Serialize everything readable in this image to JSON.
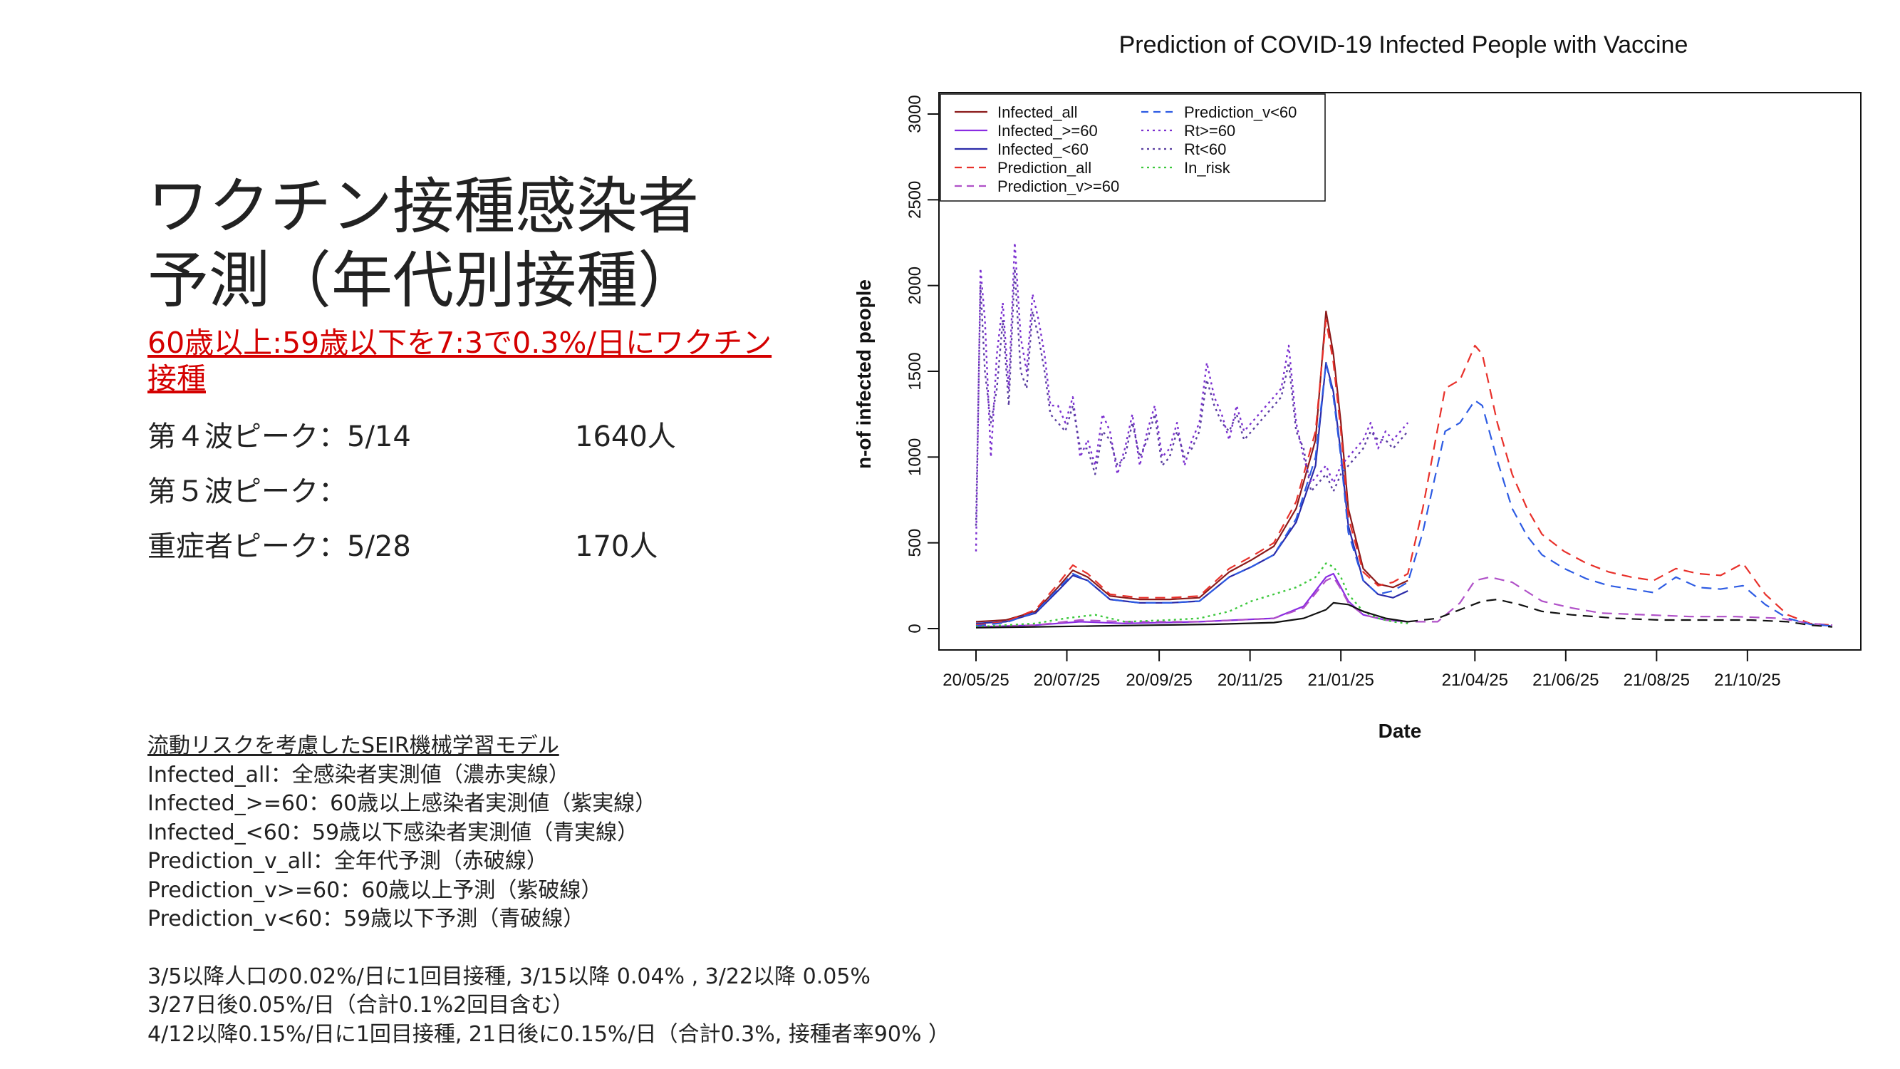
{
  "slide": {
    "title_line1": "ワクチン接種感染者",
    "title_line2": "予測（年代別接種）",
    "scenario": "60歳以上:59歳以下を7:3で0.3%/日にワクチン接種",
    "peaks": [
      {
        "label": "第４波ピーク：5/14",
        "value": "1640人"
      },
      {
        "label": "第５波ピーク：",
        "value": ""
      },
      {
        "label": "重症者ピーク：5/28",
        "value": "170人"
      }
    ],
    "notes_heading": "流動リスクを考慮したSEIR機械学習モデル",
    "legend_notes": [
      "Infected_all：全感染者実測値（濃赤実線）",
      "Infected_>=60：60歳以上感染者実測値（紫実線）",
      "Infected_<60：59歳以下感染者実測値（青実線）",
      "Prediction_v_all：全年代予測（赤破線）",
      "Prediction_v>=60：60歳以上予測（紫破線）",
      "Prediction_v<60：59歳以下予測（青破線）"
    ],
    "vaccine_notes": [
      "3/5以降人口の0.02%/日に1回目接種, 3/15以降 0.04% , 3/22以降 0.05%",
      "3/27日後0.05%/日（合計0.1%2回目含む）",
      "4/12以降0.15%/日に1回目接種, 21日後に0.15%/日（合計0.3%, 接種者率90% ）"
    ]
  },
  "chart_data": {
    "type": "line",
    "title": "Prediction of COVID-19 Infected People with Vaccine",
    "xlabel": "Date",
    "ylabel": "n-of infected people",
    "ylim": [
      0,
      3000
    ],
    "yticks": [
      0,
      500,
      1000,
      1500,
      2000,
      2500,
      3000
    ],
    "xticks": [
      "20/05/25",
      "20/07/25",
      "20/09/25",
      "20/11/25",
      "21/01/25",
      "21/04/25",
      "21/06/25",
      "21/08/25",
      "21/10/25"
    ],
    "xticks_day": [
      0,
      61,
      123,
      184,
      245,
      335,
      396,
      457,
      518
    ],
    "legend_position": "top-left",
    "series": [
      {
        "name": "Infected_all",
        "color": "#8b1a1a",
        "dash": "solid",
        "x": [
          0,
          20,
          40,
          55,
          65,
          75,
          90,
          110,
          130,
          150,
          170,
          185,
          200,
          215,
          228,
          235,
          240,
          245,
          250,
          260,
          270,
          280,
          290
        ],
        "y": [
          40,
          50,
          100,
          240,
          340,
          300,
          190,
          170,
          170,
          180,
          330,
          400,
          480,
          700,
          1100,
          1850,
          1600,
          1200,
          700,
          350,
          260,
          240,
          280
        ]
      },
      {
        "name": "Infected_>=60",
        "color": "#8a2be2",
        "dash": "solid",
        "x": [
          0,
          40,
          70,
          100,
          150,
          200,
          220,
          235,
          240,
          245,
          250,
          260,
          275,
          290
        ],
        "y": [
          10,
          20,
          40,
          30,
          40,
          60,
          130,
          300,
          320,
          240,
          160,
          80,
          50,
          40
        ]
      },
      {
        "name": "Infected_<60",
        "color": "#2a2aa8",
        "dash": "solid",
        "x": [
          0,
          20,
          40,
          55,
          65,
          75,
          90,
          110,
          130,
          150,
          170,
          185,
          200,
          215,
          228,
          235,
          240,
          245,
          250,
          260,
          270,
          280,
          290
        ],
        "y": [
          30,
          40,
          90,
          220,
          310,
          280,
          170,
          150,
          150,
          160,
          300,
          360,
          430,
          620,
          950,
          1550,
          1380,
          1020,
          600,
          280,
          200,
          180,
          220
        ]
      },
      {
        "name": "Prediction_all",
        "color": "#e8302a",
        "dash": "dashed",
        "x": [
          0,
          20,
          40,
          55,
          65,
          75,
          90,
          110,
          130,
          150,
          170,
          185,
          200,
          215,
          228,
          235,
          240,
          245,
          250,
          260,
          270,
          280,
          290,
          300,
          315,
          325,
          335,
          340,
          350,
          360,
          370,
          380,
          395,
          410,
          425,
          440,
          455,
          470,
          485,
          500,
          515,
          530,
          545,
          560,
          575
        ],
        "y": [
          20,
          40,
          110,
          260,
          370,
          320,
          200,
          180,
          180,
          190,
          350,
          420,
          500,
          740,
          1150,
          1800,
          1550,
          1150,
          650,
          330,
          250,
          270,
          320,
          700,
          1400,
          1450,
          1650,
          1600,
          1200,
          900,
          700,
          550,
          450,
          380,
          330,
          300,
          280,
          350,
          320,
          310,
          380,
          200,
          80,
          30,
          20
        ]
      },
      {
        "name": "Prediction_v>=60",
        "color": "#b050c8",
        "dash": "dashed",
        "x": [
          0,
          40,
          70,
          100,
          150,
          200,
          220,
          235,
          240,
          245,
          250,
          260,
          275,
          290,
          310,
          325,
          335,
          345,
          360,
          380,
          400,
          420,
          450,
          480,
          510,
          540,
          560,
          575
        ],
        "y": [
          10,
          20,
          50,
          40,
          40,
          60,
          120,
          280,
          300,
          230,
          150,
          80,
          50,
          40,
          40,
          150,
          280,
          300,
          270,
          160,
          120,
          90,
          80,
          70,
          70,
          60,
          30,
          20
        ]
      },
      {
        "name": "Prediction_v<60",
        "color": "#2d5be3",
        "dash": "dashed",
        "x": [
          0,
          20,
          40,
          55,
          65,
          75,
          90,
          110,
          130,
          150,
          170,
          185,
          200,
          215,
          228,
          235,
          240,
          245,
          250,
          260,
          270,
          280,
          290,
          300,
          315,
          325,
          335,
          340,
          350,
          360,
          370,
          380,
          395,
          410,
          425,
          440,
          455,
          470,
          485,
          500,
          515,
          530,
          545,
          560,
          575
        ],
        "y": [
          15,
          35,
          95,
          230,
          320,
          280,
          170,
          150,
          150,
          160,
          300,
          360,
          430,
          640,
          1000,
          1550,
          1350,
          1000,
          560,
          280,
          200,
          220,
          270,
          560,
          1150,
          1200,
          1330,
          1300,
          980,
          700,
          540,
          430,
          350,
          290,
          250,
          230,
          210,
          300,
          240,
          230,
          250,
          140,
          60,
          25,
          15
        ]
      },
      {
        "name": "Rt>=60",
        "color": "#7b2fd0",
        "dash": "dotted",
        "x": [
          0,
          3,
          6,
          10,
          14,
          18,
          22,
          26,
          30,
          34,
          38,
          42,
          46,
          50,
          55,
          60,
          65,
          70,
          75,
          80,
          85,
          90,
          95,
          100,
          105,
          110,
          115,
          120,
          125,
          130,
          135,
          140,
          145,
          150,
          155,
          160,
          165,
          170,
          175,
          180,
          185,
          190,
          195,
          200,
          205,
          210,
          215,
          220,
          225,
          230,
          235,
          240,
          245,
          250,
          255,
          260,
          265,
          270,
          275,
          280,
          285,
          290
        ],
        "y": [
          450,
          2100,
          1800,
          1000,
          1600,
          1900,
          1400,
          2250,
          1700,
          1500,
          1950,
          1800,
          1600,
          1300,
          1300,
          1200,
          1350,
          1000,
          1100,
          950,
          1250,
          1150,
          900,
          1050,
          1250,
          950,
          1150,
          1300,
          1000,
          1050,
          1200,
          950,
          1100,
          1200,
          1550,
          1350,
          1250,
          1100,
          1300,
          1150,
          1200,
          1250,
          1300,
          1350,
          1400,
          1650,
          1200,
          1000,
          850,
          900,
          950,
          850,
          950,
          1000,
          1050,
          1100,
          1200,
          1050,
          1150,
          1100,
          1150,
          1200
        ]
      },
      {
        "name": "Rt<60",
        "color": "#5a3fa0",
        "dash": "dotted",
        "x": [
          0,
          3,
          6,
          10,
          14,
          18,
          22,
          26,
          30,
          34,
          38,
          42,
          46,
          50,
          55,
          60,
          65,
          70,
          75,
          80,
          85,
          90,
          95,
          100,
          105,
          110,
          115,
          120,
          125,
          130,
          135,
          140,
          145,
          150,
          155,
          160,
          165,
          170,
          175,
          180,
          185,
          190,
          195,
          200,
          205,
          210,
          215,
          220,
          225,
          230,
          235,
          240,
          245,
          250,
          255,
          260,
          265,
          270,
          275,
          280,
          285,
          290
        ],
        "y": [
          600,
          2000,
          1500,
          1200,
          1400,
          1800,
          1300,
          2100,
          1500,
          1400,
          1850,
          1700,
          1500,
          1250,
          1200,
          1150,
          1300,
          1050,
          1050,
          900,
          1150,
          1100,
          950,
          1000,
          1200,
          1000,
          1100,
          1250,
          950,
          1000,
          1150,
          1000,
          1050,
          1150,
          1450,
          1300,
          1200,
          1150,
          1250,
          1100,
          1150,
          1200,
          1250,
          1300,
          1350,
          1550,
          1150,
          1050,
          800,
          850,
          900,
          800,
          900,
          950,
          1000,
          1050,
          1150,
          1100,
          1100,
          1050,
          1100,
          1150
        ]
      },
      {
        "name": "In_risk",
        "color": "#3cc83c",
        "dash": "dotted",
        "x": [
          0,
          40,
          60,
          80,
          100,
          130,
          150,
          170,
          185,
          200,
          215,
          228,
          235,
          240,
          245,
          250,
          260,
          270,
          280,
          290
        ],
        "y": [
          10,
          30,
          60,
          80,
          40,
          50,
          60,
          100,
          160,
          200,
          240,
          300,
          380,
          360,
          300,
          200,
          100,
          60,
          40,
          30
        ]
      },
      {
        "name": "",
        "color": "#111111",
        "dash": "solid",
        "x": [
          0,
          40,
          80,
          120,
          160,
          200,
          220,
          235,
          240,
          250,
          260,
          275,
          290
        ],
        "y": [
          5,
          10,
          15,
          20,
          25,
          35,
          60,
          110,
          150,
          140,
          100,
          60,
          40
        ]
      },
      {
        "name": "",
        "color": "#111111",
        "dash": "dashed",
        "x": [
          290,
          310,
          325,
          340,
          350,
          365,
          380,
          400,
          430,
          460,
          490,
          520,
          545,
          560,
          575
        ],
        "y": [
          40,
          60,
          110,
          160,
          170,
          140,
          100,
          80,
          60,
          50,
          50,
          50,
          40,
          20,
          10
        ]
      }
    ]
  }
}
